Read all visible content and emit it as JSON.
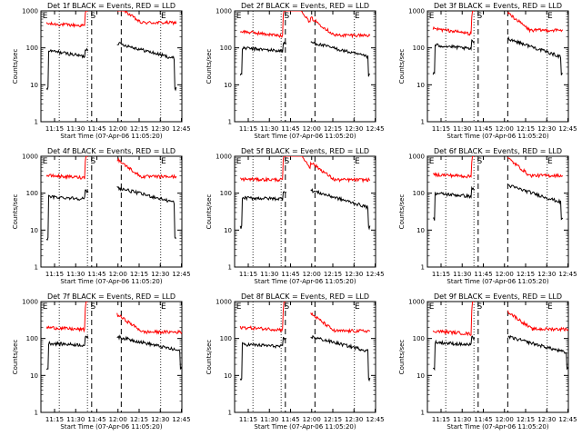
{
  "chart_data": {
    "type": "line",
    "panel_count": 9,
    "y_scale": "log",
    "ylim": [
      1,
      1000
    ],
    "ylabel": "Counts/sec",
    "xlabel": "Start Time (07-Apr-06 11:05:20)",
    "x_ticks": [
      "11:15",
      "11:30",
      "11:45",
      "12:00",
      "12:15",
      "12:30",
      "12:45"
    ],
    "y_ticks": [
      "1",
      "10",
      "100",
      "1000"
    ],
    "x_range_minutes": [
      0,
      100
    ],
    "series_colors": {
      "events": "#000000",
      "lld": "#ff0000"
    },
    "markers": [
      "E",
      "S",
      "E"
    ],
    "panels": [
      {
        "title": "Det 1f BLACK = Events, RED = LLD"
      },
      {
        "title": "Det 2f BLACK = Events, RED = LLD"
      },
      {
        "title": "Det 3f BLACK = Events, RED = LLD"
      },
      {
        "title": "Det 4f BLACK = Events, RED = LLD"
      },
      {
        "title": "Det 5f BLACK = Events, RED = LLD"
      },
      {
        "title": "Det 6f BLACK = Events, RED = LLD"
      },
      {
        "title": "Det 7f BLACK = Events, RED = LLD"
      },
      {
        "title": "Det 8f BLACK = Events, RED = LLD"
      },
      {
        "title": "Det 9f BLACK = Events, RED = LLD"
      }
    ]
  }
}
